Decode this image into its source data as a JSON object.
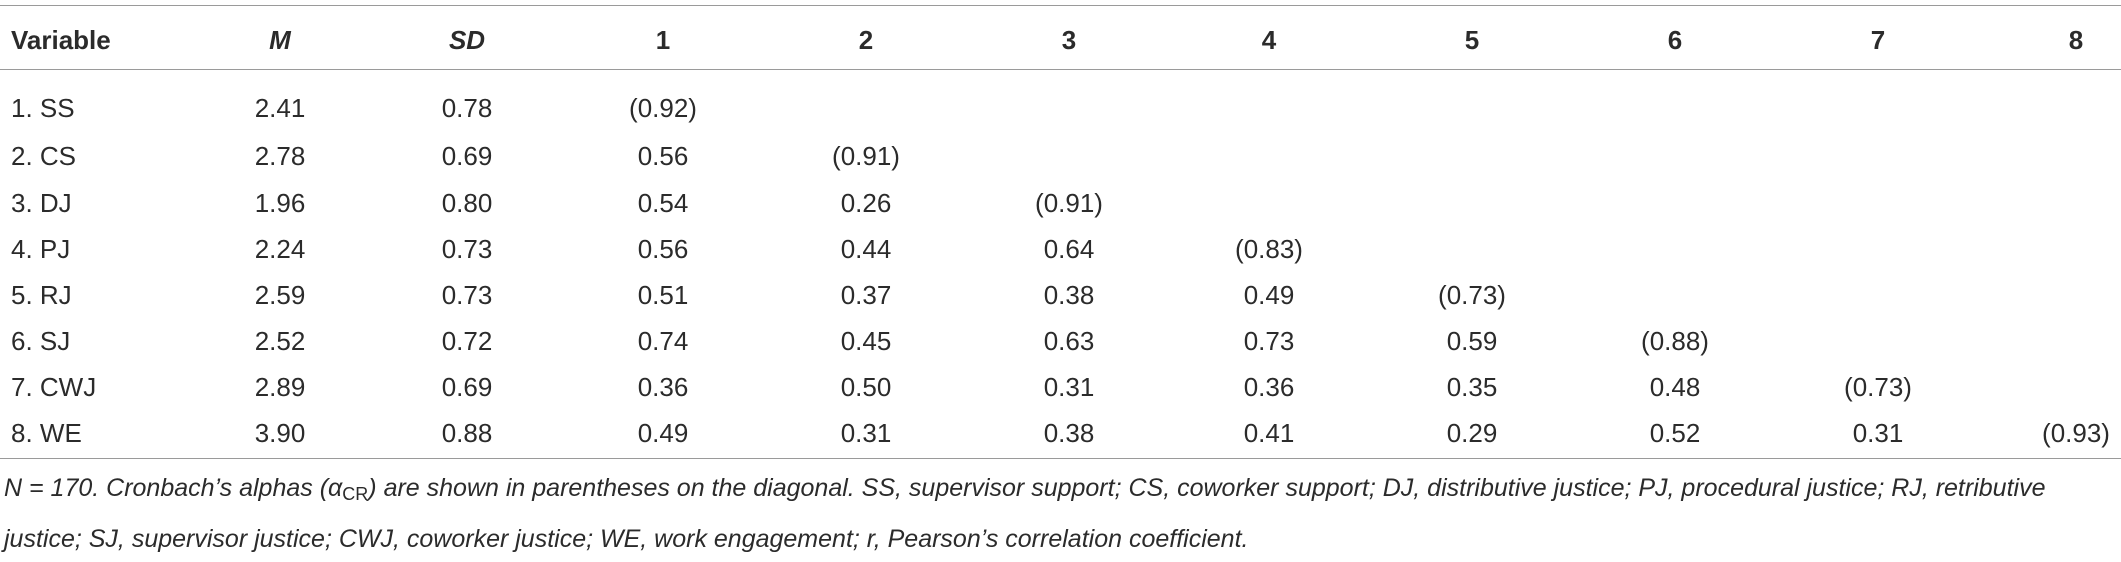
{
  "table": {
    "header": [
      "Variable",
      "M",
      "SD",
      "1",
      "2",
      "3",
      "4",
      "5",
      "6",
      "7",
      "8"
    ],
    "rows": [
      [
        "1. SS",
        "2.41",
        "0.78",
        "(0.92)"
      ],
      [
        "2. CS",
        "2.78",
        "0.69",
        "0.56",
        "(0.91)"
      ],
      [
        "3. DJ",
        "1.96",
        "0.80",
        "0.54",
        "0.26",
        "(0.91)"
      ],
      [
        "4. PJ",
        "2.24",
        "0.73",
        "0.56",
        "0.44",
        "0.64",
        "(0.83)"
      ],
      [
        "5. RJ",
        "2.59",
        "0.73",
        "0.51",
        "0.37",
        "0.38",
        "0.49",
        "(0.73)"
      ],
      [
        "6. SJ",
        "2.52",
        "0.72",
        "0.74",
        "0.45",
        "0.63",
        "0.73",
        "0.59",
        "(0.88)"
      ],
      [
        "7. CWJ",
        "2.89",
        "0.69",
        "0.36",
        "0.50",
        "0.31",
        "0.36",
        "0.35",
        "0.48",
        "(0.73)"
      ],
      [
        "8. WE",
        "3.90",
        "0.88",
        "0.49",
        "0.31",
        "0.38",
        "0.41",
        "0.29",
        "0.52",
        "0.31",
        "(0.93)"
      ]
    ],
    "note": [
      "N = 170. Cronbach’s alphas (α",
      "CR",
      ") are shown in parentheses on the diagonal. SS, supervisor support; CS, coworker support; DJ, distributive justice; PJ, procedural justice; RJ, retributive justice; SJ, supervisor justice; CWJ, coworker justice; WE, work engagement; r, Pearson’s correlation coefficient."
    ]
  }
}
